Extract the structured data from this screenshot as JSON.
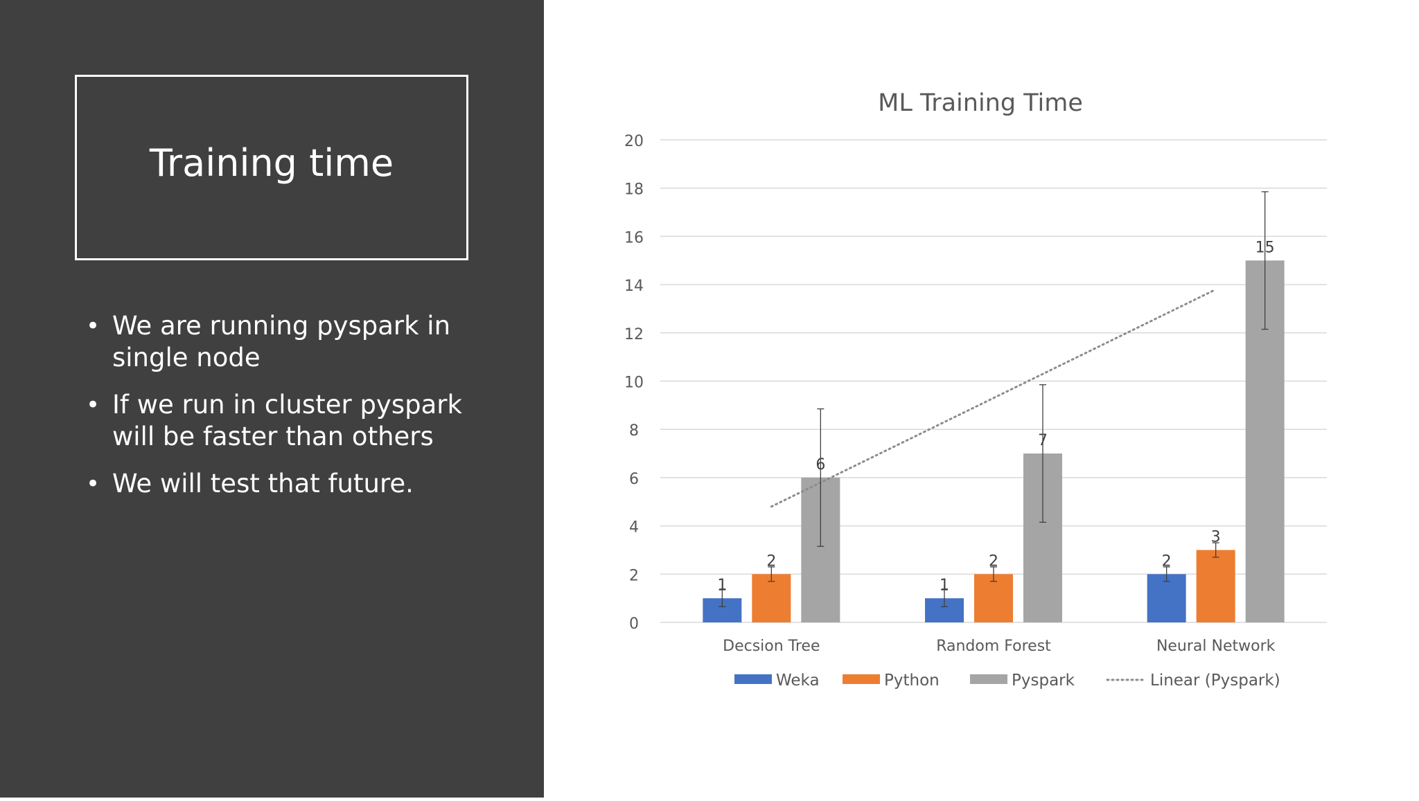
{
  "slide": {
    "title": "Training time",
    "bullets": [
      "We are running pyspark in single node",
      "If we run in cluster pyspark will be faster than others",
      "We will test that future."
    ]
  },
  "chart_data": {
    "type": "bar",
    "title": "ML Training Time",
    "categories": [
      "Decsion Tree",
      "Random Forest",
      "Neural Network"
    ],
    "series": [
      {
        "name": "Weka",
        "values": [
          1,
          1,
          2
        ],
        "error": [
          0.35,
          0.35,
          0.3
        ],
        "color": "#4472C4"
      },
      {
        "name": "Python",
        "values": [
          2,
          2,
          3
        ],
        "error": [
          0.3,
          0.3,
          0.3
        ],
        "color": "#ED7D31"
      },
      {
        "name": "Pyspark",
        "values": [
          6,
          7,
          15
        ],
        "error": [
          2.85,
          2.85,
          2.85
        ],
        "color": "#A5A5A5"
      }
    ],
    "trendline": {
      "name": "Linear (Pyspark)",
      "series": "Pyspark",
      "start": 4.8,
      "end": 13.8,
      "color": "#A5A5A5"
    },
    "ylim": [
      0,
      20
    ],
    "yticks": [
      "0",
      "2",
      "4",
      "6",
      "8",
      "10",
      "12",
      "14",
      "16",
      "18",
      "20"
    ],
    "grid": true,
    "legend": "bottom",
    "data_labels": true
  }
}
